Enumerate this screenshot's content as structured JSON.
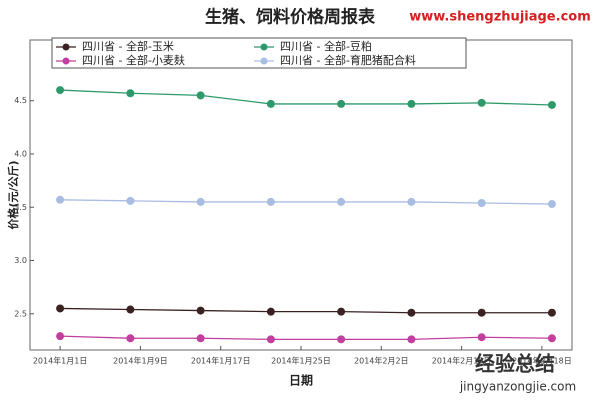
{
  "chart_data": {
    "type": "line",
    "title": "生猪、饲料价格周报表",
    "site": "www.shengzhujiage.com",
    "watermark": "经验总结",
    "watermark_url": "jingyanzongjie.com",
    "xlabel": "日期",
    "ylabel": "价格(元/公斤)",
    "x": [
      "2014-01-01",
      "2014-01-08",
      "2014-01-15",
      "2014-01-22",
      "2014-01-29",
      "2014-02-05",
      "2014-02-12",
      "2014-02-19"
    ],
    "xlim": [
      "2013-12-29",
      "2014-02-21"
    ],
    "xticks": [
      {
        "value": "2014-01-01",
        "label": "2014年1月1日"
      },
      {
        "value": "2014-01-09",
        "label": "2014年1月9日"
      },
      {
        "value": "2014-01-17",
        "label": "2014年1月17日"
      },
      {
        "value": "2014-01-25",
        "label": "2014年1月25日"
      },
      {
        "value": "2014-02-02",
        "label": "2014年2月2日"
      },
      {
        "value": "2014-02-10",
        "label": "2014年2月10日"
      },
      {
        "value": "2014-02-18",
        "label": "2014年2月18日"
      }
    ],
    "ylim": [
      2.16,
      5.07
    ],
    "yticks": [
      2.5,
      {
        "value": 3,
        "label": "3.0"
      },
      3.5,
      {
        "value": 4,
        "label": "4.0"
      },
      4.5
    ],
    "series": [
      {
        "name": "四川省 - 全部-玉米",
        "color": "#3a2222",
        "values": [
          2.55,
          2.54,
          2.53,
          2.52,
          2.52,
          2.51,
          2.51,
          2.51
        ]
      },
      {
        "name": "四川省 - 全部-豆粕",
        "color": "#2e9a6c",
        "values": [
          4.6,
          4.57,
          4.55,
          4.47,
          4.47,
          4.47,
          4.48,
          4.46
        ]
      },
      {
        "name": "四川省 - 全部-小麦麸",
        "color": "#c23f9f",
        "values": [
          2.29,
          2.27,
          2.27,
          2.26,
          2.26,
          2.26,
          2.28,
          2.27
        ]
      },
      {
        "name": "四川省 - 全部-育肥猪配合料",
        "color": "#a9bde2",
        "values": [
          3.57,
          3.56,
          3.55,
          3.55,
          3.55,
          3.55,
          3.54,
          3.53
        ]
      }
    ]
  }
}
